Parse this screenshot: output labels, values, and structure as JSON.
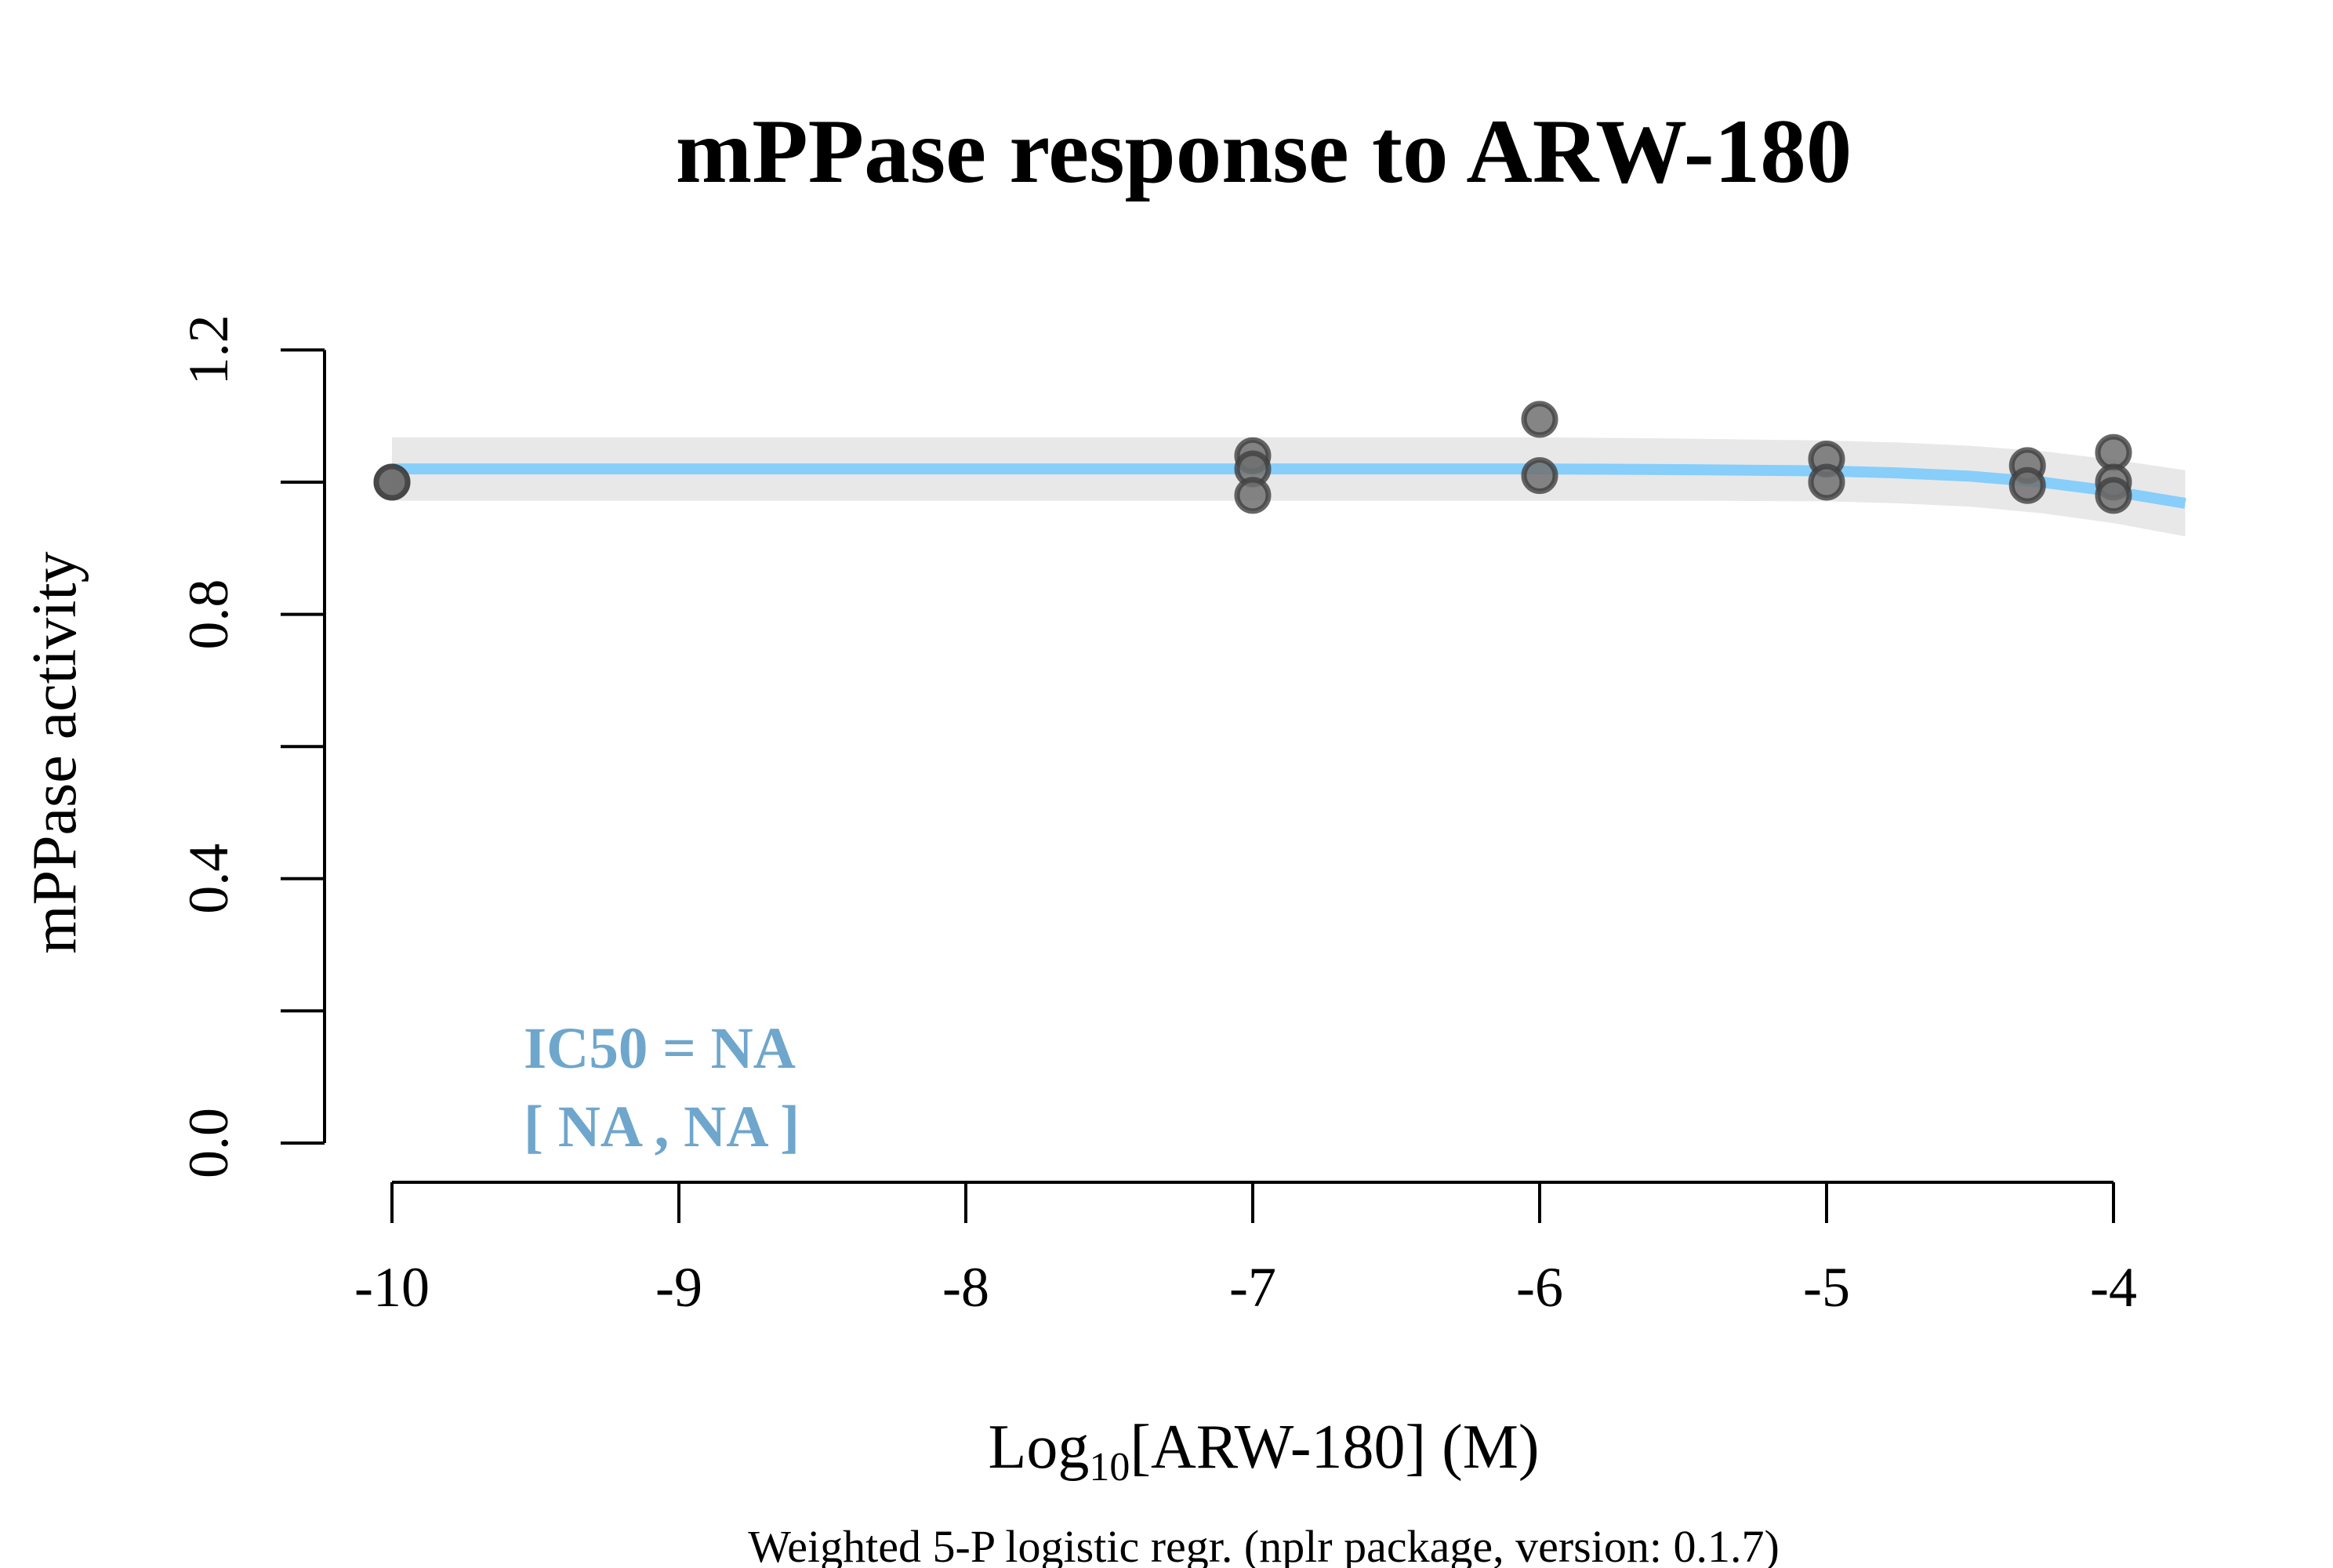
{
  "chart_data": {
    "type": "scatter",
    "title": "mPPase response to ARW-180",
    "xlabel": {
      "prefix": "Log",
      "subscript": "10",
      "suffix": "[ARW-180] (M)"
    },
    "ylabel": "mPPase activity",
    "footnote": "Weighted 5-P logistic regr. (nplr package, version: 0.1.7)",
    "annotation": {
      "line1": "IC50 = NA",
      "line2": "[ NA , NA ]"
    },
    "xlim": [
      -10,
      -3.75
    ],
    "ylim": [
      0,
      1.2
    ],
    "xticks": [
      -10,
      -9,
      -8,
      -7,
      -6,
      -5,
      -4
    ],
    "xtick_labels": [
      "-10",
      "-9",
      "-8",
      "-7",
      "-6",
      "-5",
      "-4"
    ],
    "yticks": [
      0,
      0.2,
      0.4,
      0.6,
      0.8,
      1.0,
      1.2
    ],
    "ytick_labels": [
      "0.0",
      "",
      "0.4",
      "",
      "0.8",
      "",
      "1.2"
    ],
    "grid": false,
    "points": [
      {
        "x": -10,
        "y": 1.0
      },
      {
        "x": -10,
        "y": 1.0
      },
      {
        "x": -7,
        "y": 1.04
      },
      {
        "x": -7,
        "y": 1.02
      },
      {
        "x": -7,
        "y": 0.98
      },
      {
        "x": -6,
        "y": 1.095
      },
      {
        "x": -6,
        "y": 1.01
      },
      {
        "x": -5,
        "y": 1.035
      },
      {
        "x": -5,
        "y": 1.0
      },
      {
        "x": -4.3,
        "y": 1.025
      },
      {
        "x": -4.3,
        "y": 0.995
      },
      {
        "x": -4,
        "y": 1.045
      },
      {
        "x": -4,
        "y": 1.0
      },
      {
        "x": -4,
        "y": 0.98
      }
    ],
    "fit_curve": {
      "x": [
        -10,
        -9,
        -8,
        -7,
        -6,
        -5.5,
        -5,
        -4.75,
        -4.5,
        -4.25,
        -4,
        -3.75
      ],
      "y": [
        1.02,
        1.02,
        1.02,
        1.02,
        1.02,
        1.019,
        1.017,
        1.014,
        1.009,
        1.0,
        0.986,
        0.968
      ]
    },
    "confidence_band": {
      "x": [
        -10,
        -9,
        -8,
        -7,
        -6,
        -5.5,
        -5,
        -4.75,
        -4.5,
        -4.25,
        -4,
        -3.75
      ],
      "upper": [
        1.068,
        1.068,
        1.068,
        1.068,
        1.068,
        1.066,
        1.063,
        1.06,
        1.055,
        1.047,
        1.034,
        1.018
      ],
      "lower": [
        0.972,
        0.972,
        0.972,
        0.972,
        0.972,
        0.972,
        0.971,
        0.968,
        0.963,
        0.953,
        0.938,
        0.918
      ]
    },
    "colors": {
      "curve": "#87CEFA",
      "band": "#E8E8E8",
      "annotation": "#6FA6CC",
      "point_fill": "#707070",
      "point_stroke": "#404040",
      "axis": "#000000"
    }
  }
}
